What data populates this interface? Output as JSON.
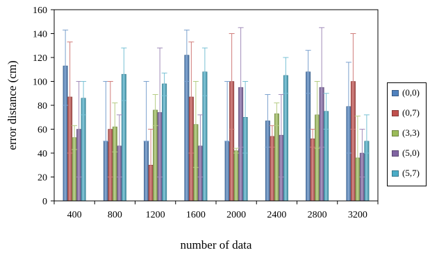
{
  "chart_data": {
    "type": "bar",
    "title": "",
    "xlabel": "number of data",
    "ylabel": "error distance (cm)",
    "ylim": [
      0,
      160
    ],
    "yticks": [
      0,
      20,
      40,
      60,
      80,
      100,
      120,
      140,
      160
    ],
    "grid": false,
    "legend_position": "right",
    "categories": [
      "400",
      "800",
      "1200",
      "1600",
      "2000",
      "2400",
      "2800",
      "3200"
    ],
    "series": [
      {
        "name": "(0,0)",
        "color": "#4F81BD",
        "values": [
          113,
          50,
          50,
          122,
          50,
          67,
          108,
          79
        ],
        "err_low": [
          80,
          50,
          50,
          100,
          50,
          45,
          90,
          40
        ],
        "err_high": [
          143,
          100,
          100,
          143,
          100,
          89,
          126,
          116
        ]
      },
      {
        "name": "(0,7)",
        "color": "#C0504D",
        "values": [
          87,
          60,
          30,
          87,
          100,
          54,
          52,
          100
        ],
        "err_low": [
          40,
          20,
          0,
          40,
          60,
          45,
          45,
          60
        ],
        "err_high": [
          133,
          100,
          60,
          133,
          140,
          63,
          60,
          140
        ]
      },
      {
        "name": "(3,3)",
        "color": "#9BBB59",
        "values": [
          53,
          62,
          76,
          64,
          42,
          73,
          72,
          36
        ],
        "err_low": [
          43,
          41,
          63,
          28,
          40,
          63,
          44,
          0
        ],
        "err_high": [
          63,
          82,
          89,
          100,
          44,
          82,
          100,
          71
        ]
      },
      {
        "name": "(5,0)",
        "color": "#8064A2",
        "values": [
          60,
          46,
          74,
          46,
          95,
          55,
          95,
          40
        ],
        "err_low": [
          20,
          20,
          20,
          20,
          45,
          20,
          45,
          20
        ],
        "err_high": [
          100,
          72,
          128,
          72,
          145,
          89,
          145,
          60
        ]
      },
      {
        "name": "(5,7)",
        "color": "#4BACC6",
        "values": [
          86,
          106,
          98,
          108,
          70,
          105,
          75,
          50
        ],
        "err_low": [
          72,
          84,
          88,
          88,
          40,
          90,
          60,
          40
        ],
        "err_high": [
          100,
          128,
          107,
          128,
          100,
          120,
          90,
          72
        ]
      }
    ]
  }
}
